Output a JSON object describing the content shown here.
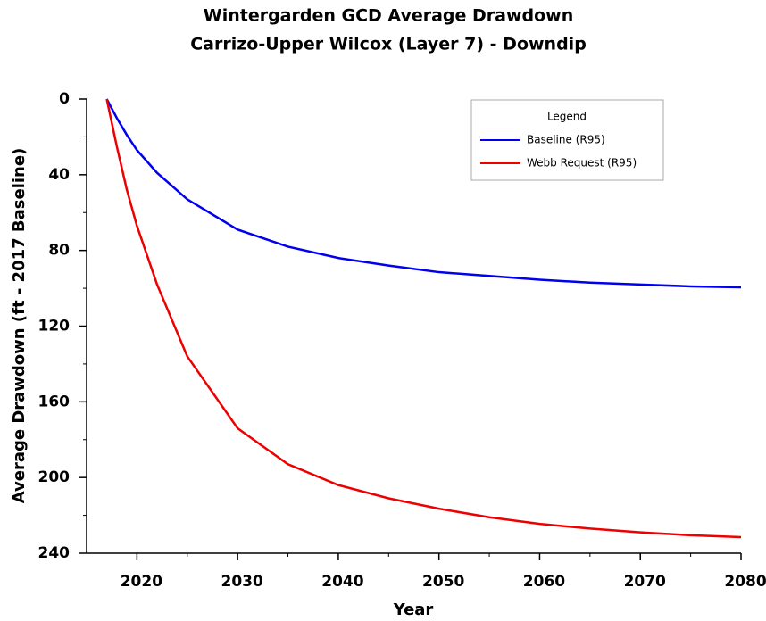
{
  "chart_data": {
    "type": "line",
    "title": "Wintergarden GCD Average Drawdown",
    "subtitle": "Carrizo-Upper Wilcox (Layer 7) - Downdip",
    "x_label": "Year",
    "y_label": "Average Drawdown (ft - 2017 Baseline)",
    "legend_title": "Legend",
    "legend": "upper right",
    "x": [
      2017,
      2018,
      2019,
      2020,
      2022,
      2025,
      2030,
      2035,
      2040,
      2045,
      2050,
      2055,
      2060,
      2065,
      2070,
      2075,
      2080
    ],
    "series": [
      {
        "name": "Baseline (R95)",
        "color": "#0000ee",
        "values": [
          0,
          10,
          19,
          27,
          39,
          53,
          69,
          78,
          84,
          88,
          91.5,
          93.5,
          95.5,
          97,
          98,
          99,
          99.5
        ]
      },
      {
        "name": "Webb Request (R95)",
        "color": "#ee0000",
        "values": [
          0,
          25,
          48,
          67,
          98,
          136,
          174,
          193,
          204,
          211,
          216.5,
          221,
          224.5,
          227,
          229,
          230.5,
          231.5
        ]
      }
    ],
    "xlim": [
      2015,
      2080
    ],
    "xticks": [
      2020,
      2030,
      2040,
      2050,
      2060,
      2070,
      2080
    ],
    "xminor_ticks": [
      2025,
      2035,
      2045,
      2055,
      2065,
      2075
    ],
    "ylim": [
      240,
      0
    ],
    "yticks": [
      0,
      40,
      80,
      120,
      160,
      200,
      240
    ],
    "yminor_ticks": [
      20,
      60,
      100,
      140,
      180,
      220
    ]
  }
}
